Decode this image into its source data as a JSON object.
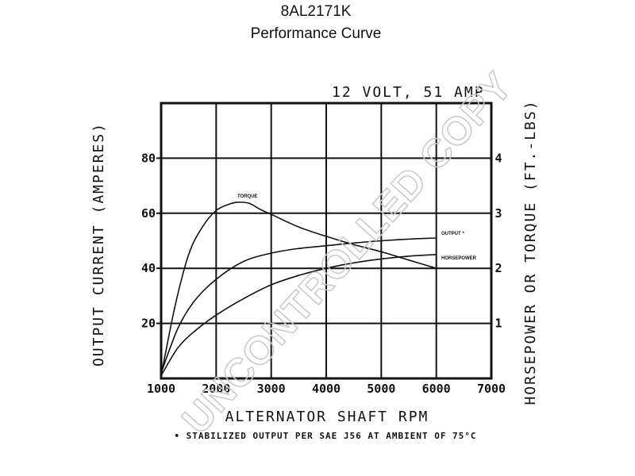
{
  "title": "8AL2171K",
  "subtitle": "Performance Curve",
  "watermark": "UNCONTROLLED COPY",
  "chart_data": {
    "type": "line",
    "annotation": "12 VOLT, 51 AMP",
    "xlabel": "ALTERNATOR SHAFT RPM",
    "ylabel_left": "OUTPUT CURRENT (AMPERES)",
    "ylabel_right": "HORSEPOWER OR TORQUE (FT.-LBS)",
    "footnote": "• STABILIZED OUTPUT PER SAE J56 AT AMBIENT OF 75°C",
    "xlim": [
      1000,
      7000
    ],
    "ylim_left": [
      0,
      100
    ],
    "ylim_right": [
      0,
      5
    ],
    "x_ticks": [
      "1000",
      "2000",
      "3000",
      "4000",
      "5000",
      "6000",
      "7000"
    ],
    "y_ticks_left": [
      "20",
      "40",
      "60",
      "80"
    ],
    "y_ticks_right": [
      "1",
      "2",
      "3",
      "4"
    ],
    "grid": true,
    "series": [
      {
        "name": "TORQUE",
        "axis": "right",
        "x": [
          1000,
          1250,
          1500,
          1750,
          2000,
          2250,
          2400,
          2600,
          2800,
          3000,
          3500,
          4000,
          4500,
          5000,
          5500,
          6000
        ],
        "y": [
          0.05,
          1.3,
          2.25,
          2.75,
          3.05,
          3.17,
          3.2,
          3.18,
          3.07,
          2.98,
          2.75,
          2.58,
          2.43,
          2.3,
          2.15,
          2.0
        ]
      },
      {
        "name": "OUTPUT *",
        "axis": "left",
        "x": [
          1000,
          1300,
          1600,
          2000,
          2500,
          3000,
          3500,
          4000,
          4500,
          5000,
          5500,
          6000
        ],
        "y": [
          2,
          18,
          28,
          36,
          42.5,
          45.5,
          47.2,
          48.2,
          49.2,
          50,
          50.6,
          51
        ]
      },
      {
        "name": "HORSEPOWER",
        "axis": "right",
        "x": [
          1000,
          1300,
          1600,
          2000,
          2500,
          3000,
          3500,
          4000,
          4500,
          5000,
          5500,
          6000
        ],
        "y": [
          0.05,
          0.55,
          0.85,
          1.15,
          1.45,
          1.7,
          1.87,
          2.0,
          2.1,
          2.17,
          2.22,
          2.25
        ]
      }
    ]
  }
}
